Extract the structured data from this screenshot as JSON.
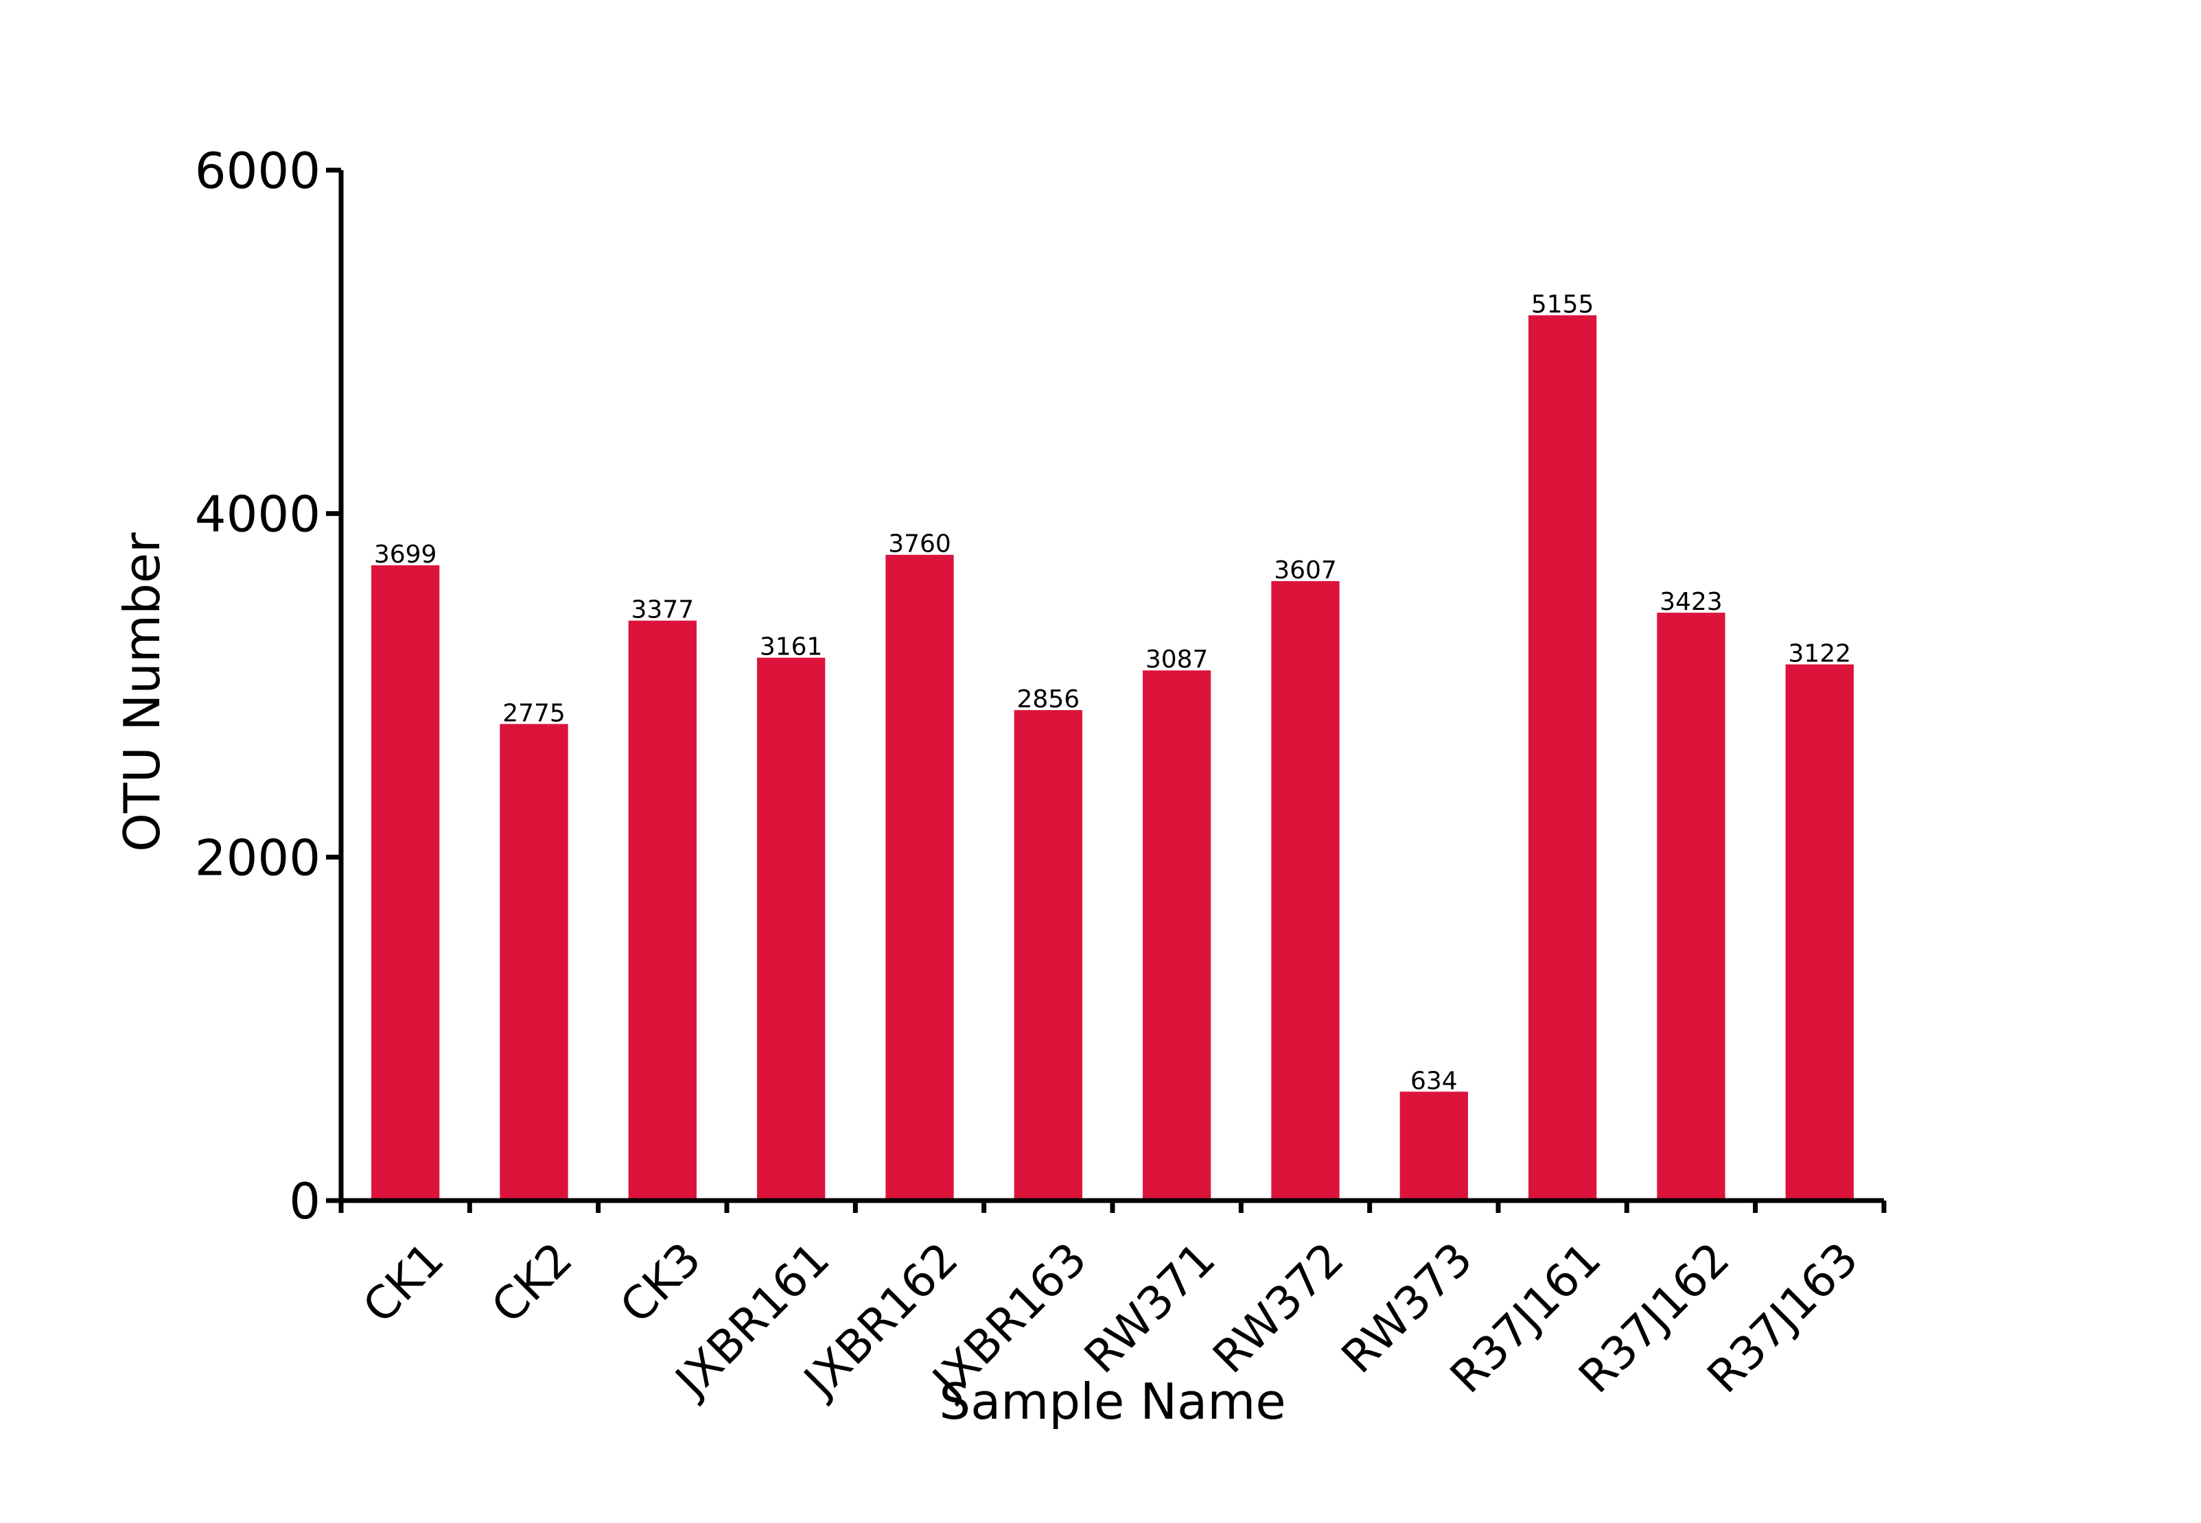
{
  "chart_data": {
    "type": "bar",
    "title": "",
    "xlabel": "Sample Name",
    "ylabel": "OTU Number",
    "categories": [
      "CK1",
      "CK2",
      "CK3",
      "JXBR161",
      "JXBR162",
      "JXBR163",
      "RW371",
      "RW372",
      "RW373",
      "R37J161",
      "R37J162",
      "R37J163"
    ],
    "values": [
      3699,
      2775,
      3377,
      3161,
      3760,
      2856,
      3087,
      3607,
      634,
      5155,
      3423,
      3122
    ],
    "data_labels": [
      "3699",
      "2775",
      "3377",
      "3161",
      "3760",
      "2856",
      "3087",
      "3607",
      "634",
      "5155",
      "3423",
      "3122"
    ],
    "ylim": [
      0,
      6000
    ],
    "yticks": [
      0,
      2000,
      4000,
      6000
    ],
    "ytick_labels": [
      "0",
      "2000",
      "4000",
      "6000"
    ],
    "bar_color": "#DC143C",
    "grid": false,
    "legend": "none"
  }
}
